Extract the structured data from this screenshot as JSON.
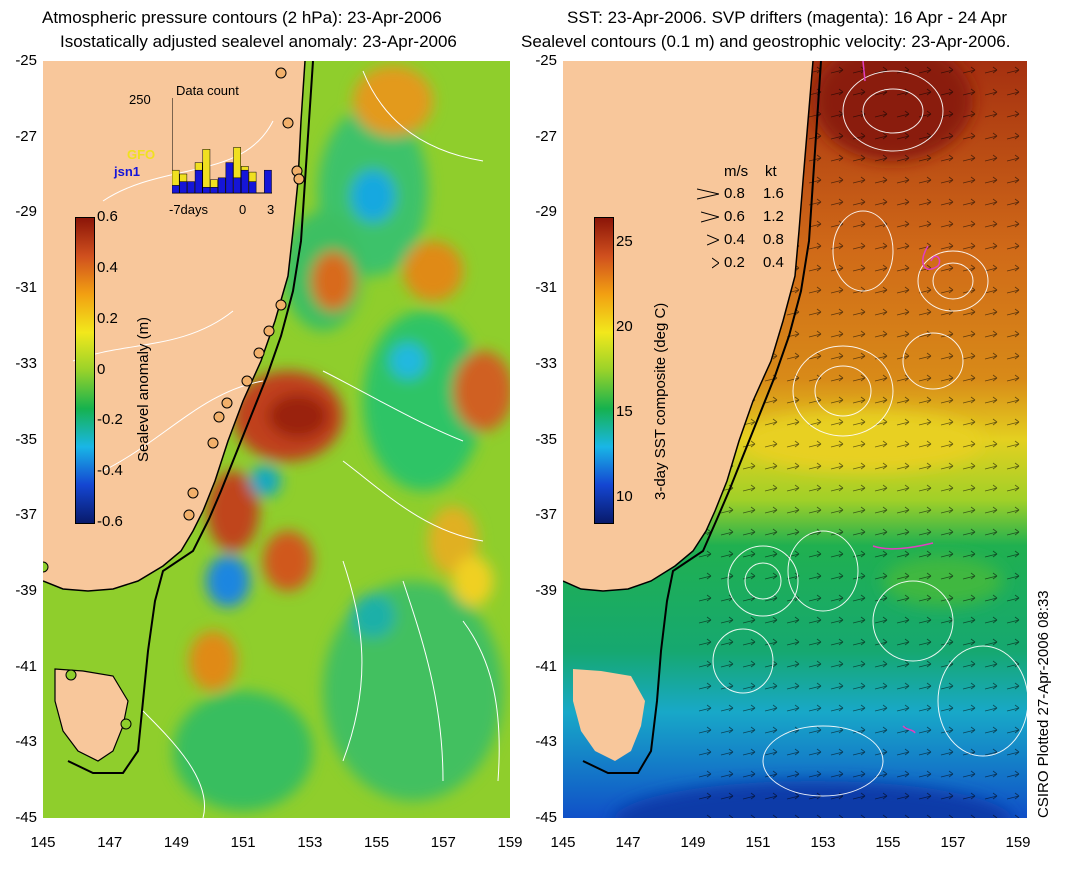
{
  "left_panel": {
    "title_line1": "Atmospheric pressure contours (2 hPa): 23-Apr-2006",
    "title_line2": "Isostatically adjusted sealevel anomaly: 23-Apr-2006",
    "colorbar": {
      "label": "Sealevel anomaly (m)",
      "ticks": [
        "0.6",
        "0.4",
        "0.2",
        "0",
        "-0.2",
        "-0.4",
        "-0.6"
      ],
      "range": [
        -0.6,
        0.6
      ],
      "colors": [
        "#081a6b",
        "#1446d2",
        "#19b6e6",
        "#16b24e",
        "#98d22a",
        "#f2e81c",
        "#f2a012",
        "#d0501e",
        "#8b1508"
      ]
    },
    "data_count": {
      "title": "Data count",
      "ymax_label": "250",
      "x_labels": [
        "-7days",
        "0",
        "3"
      ],
      "legend": [
        "GFO",
        "jsn1"
      ],
      "legend_colors": [
        "#f0e020",
        "#1515d8"
      ],
      "gfo": [
        40,
        20,
        0,
        20,
        100,
        20,
        0,
        0,
        80,
        10,
        25,
        0,
        0
      ],
      "jsn1": [
        20,
        30,
        30,
        60,
        15,
        15,
        40,
        80,
        40,
        60,
        30,
        0,
        60
      ]
    },
    "y_labels": [
      "-25",
      "-27",
      "-29",
      "-31",
      "-33",
      "-35",
      "-37",
      "-39",
      "-41",
      "-43",
      "-45"
    ],
    "x_labels": [
      "145",
      "147",
      "149",
      "151",
      "153",
      "155",
      "157",
      "159"
    ]
  },
  "right_panel": {
    "title_line1": "SST: 23-Apr-2006. SVP drifters (magenta): 16 Apr - 24 Apr",
    "title_line2": "Sealevel contours (0.1 m) and geostrophic velocity: 23-Apr-2006.",
    "colorbar": {
      "label": "3-day SST composite (deg C)",
      "ticks": [
        "25",
        "20",
        "15",
        "10"
      ],
      "range": [
        8.5,
        26.5
      ],
      "colors": [
        "#081a6b",
        "#1446d2",
        "#19b6e6",
        "#16b24e",
        "#98d22a",
        "#f2e81c",
        "#f2a012",
        "#d0501e",
        "#8b1508"
      ]
    },
    "velocity_legend": {
      "header_ms": "m/s",
      "header_kt": "kt",
      "rows": [
        {
          "ms": "0.8",
          "kt": "1.6"
        },
        {
          "ms": "0.6",
          "kt": "1.2"
        },
        {
          "ms": "0.4",
          "kt": "0.8"
        },
        {
          "ms": "0.2",
          "kt": "0.4"
        }
      ]
    },
    "y_labels": [
      "-25",
      "-27",
      "-29",
      "-31",
      "-33",
      "-35",
      "-37",
      "-39",
      "-41",
      "-43",
      "-45"
    ],
    "x_labels": [
      "145",
      "147",
      "149",
      "151",
      "153",
      "155",
      "157",
      "159"
    ]
  },
  "credit": "CSIRO Plotted 27-Apr-2006 08:33",
  "map_colors": {
    "land": "#f8c79b",
    "coast": "#000000",
    "contour": "#ffffff",
    "drifter": "#e040c0"
  }
}
